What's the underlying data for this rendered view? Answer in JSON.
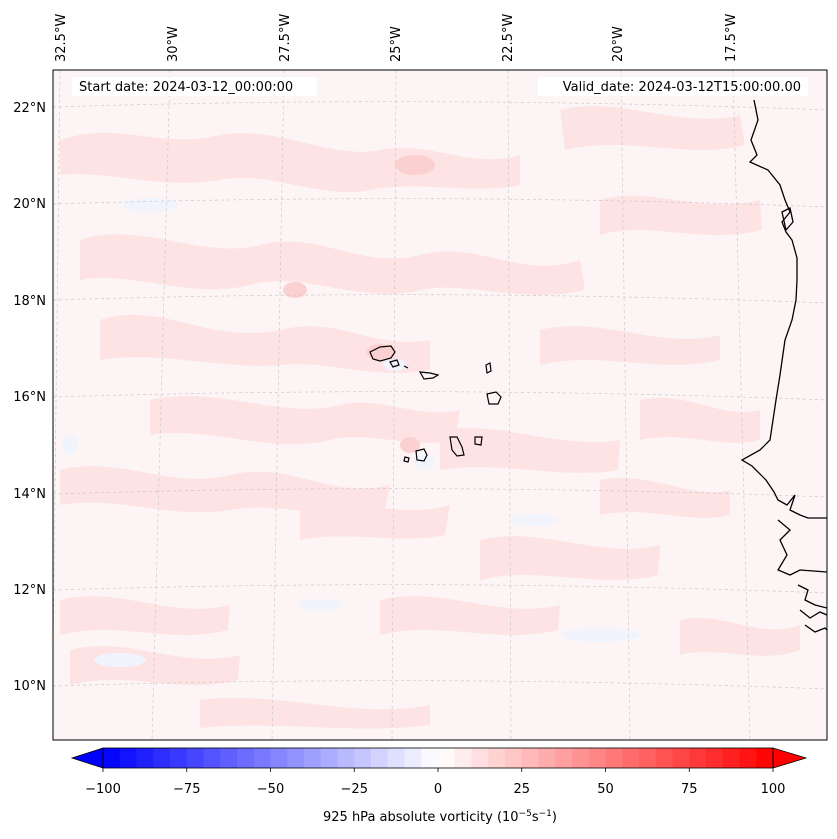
{
  "info": {
    "start_date": "Start date: 2024-03-12_00:00:00",
    "valid_date": "Valid_date: 2024-03-12T15:00:00.00"
  },
  "axes": {
    "lon_ticks": [
      "32.5°W",
      "30°W",
      "27.5°W",
      "25°W",
      "22.5°W",
      "20°W",
      "17.5°W"
    ],
    "lat_ticks": [
      "22°N",
      "20°N",
      "18°N",
      "16°N",
      "14°N",
      "12°N",
      "10°N"
    ]
  },
  "colorbar": {
    "ticks": [
      "−100",
      "−75",
      "−50",
      "−25",
      "0",
      "25",
      "50",
      "75",
      "100"
    ],
    "label_prefix": "925 hPa absolute vorticity (10",
    "label_exp1": "−5",
    "label_mid": "s",
    "label_exp2": "−1",
    "label_suffix": ")",
    "min": -100,
    "max": 100,
    "steps": 40,
    "colors": {
      "negative": "#0000ff",
      "zero": "#ffffff",
      "positive": "#ff0000"
    }
  },
  "colors": {
    "field_background": "#fdf5f5",
    "positive_patch": "#fde2e2",
    "strong_patch": "#fbd0d0",
    "negative_patch": "#f2f4fd",
    "coastline": "#000000",
    "gridline": "#c8c8c8"
  }
}
